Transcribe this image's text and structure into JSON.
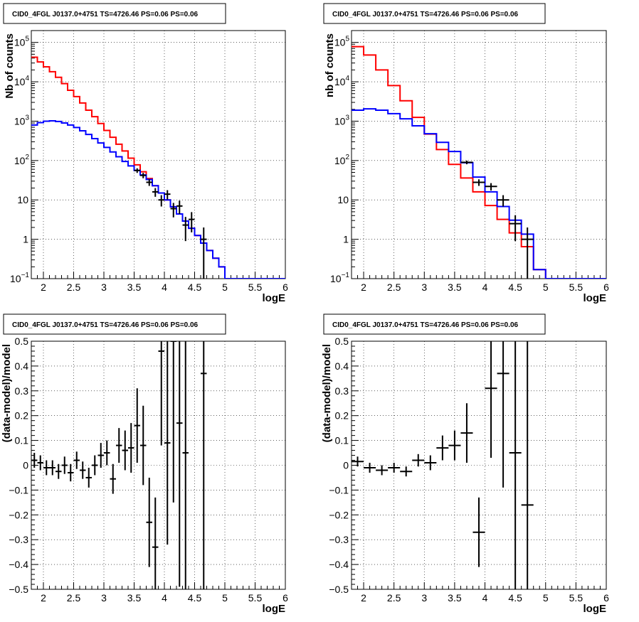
{
  "colors": {
    "data": "#000000",
    "model_total": "#ff0000",
    "model_source": "#0000ff",
    "grid": "#000000"
  },
  "chart_data": [
    {
      "type": "line",
      "title": "CID0_4FGL J0137.0+4751 TS=4726.46 PS=0.06 PS=0.06",
      "xlabel": "logE",
      "ylabel": "Nb of counts",
      "xlim": [
        1.8,
        6.0
      ],
      "ylim": [
        0.1,
        200000
      ],
      "yscale": "log",
      "grid": true,
      "xticks": [
        "2",
        "2.5",
        "3",
        "3.5",
        "4",
        "4.5",
        "5",
        "5.5",
        "6"
      ],
      "yticks": [
        {
          "v": 0.1,
          "base": "10",
          "exp": "−1"
        },
        {
          "v": 1,
          "base": "1",
          "exp": ""
        },
        {
          "v": 10,
          "base": "10",
          "exp": ""
        },
        {
          "v": 100,
          "base": "10",
          "exp": "2"
        },
        {
          "v": 1000,
          "base": "10",
          "exp": "3"
        },
        {
          "v": 10000,
          "base": "10",
          "exp": "4"
        },
        {
          "v": 100000,
          "base": "10",
          "exp": "5"
        }
      ],
      "series": [
        {
          "color": "#ff0000",
          "style": "step",
          "bin_width": 0.1,
          "x": [
            1.8,
            1.9,
            2.0,
            2.1,
            2.2,
            2.3,
            2.4,
            2.5,
            2.6,
            2.7,
            2.8,
            2.9,
            3.0,
            3.1,
            3.2,
            3.3,
            3.4,
            3.5,
            3.6,
            3.7,
            3.8,
            3.9,
            4.0,
            4.1,
            4.2,
            4.3,
            4.4,
            4.5,
            4.6,
            4.7,
            4.8,
            4.9,
            5.0,
            5.1,
            5.2,
            5.3,
            5.4,
            5.5,
            5.6,
            5.7,
            5.8,
            5.9
          ],
          "values": [
            42000,
            32000,
            24000,
            18000,
            13000,
            9000,
            6100,
            4200,
            2900,
            1900,
            1300,
            870,
            580,
            390,
            260,
            175,
            115,
            78,
            52,
            35,
            23,
            15,
            10,
            6.7,
            4.4,
            2.9,
            1.9,
            1.25,
            0.8,
            0.52,
            0.33,
            0.2,
            0.1,
            0.1,
            0.1,
            0.1,
            0.1,
            0.1,
            0.1,
            0.1,
            0.1,
            0.1
          ]
        },
        {
          "color": "#0000ff",
          "style": "step",
          "bin_width": 0.1,
          "x": [
            1.8,
            1.9,
            2.0,
            2.1,
            2.2,
            2.3,
            2.4,
            2.5,
            2.6,
            2.7,
            2.8,
            2.9,
            3.0,
            3.1,
            3.2,
            3.3,
            3.4,
            3.5,
            3.6,
            3.7,
            3.8,
            3.9,
            4.0,
            4.1,
            4.2,
            4.3,
            4.4,
            4.5,
            4.6,
            4.7,
            4.8,
            4.9,
            5.0,
            5.1,
            5.2,
            5.3,
            5.4,
            5.5,
            5.6,
            5.7,
            5.8,
            5.9
          ],
          "values": [
            800,
            920,
            1000,
            1020,
            980,
            900,
            800,
            690,
            570,
            460,
            360,
            280,
            215,
            165,
            125,
            95,
            73,
            56,
            43,
            33,
            23,
            15,
            10,
            6.7,
            4.4,
            2.9,
            1.9,
            1.25,
            0.8,
            0.52,
            0.33,
            0.2,
            0.1,
            0.1,
            0.1,
            0.1,
            0.1,
            0.1,
            0.1,
            0.1,
            0.1,
            0.1
          ]
        },
        {
          "color": "#000000",
          "style": "errorbar",
          "xerr": 0.05,
          "x": [
            3.55,
            3.65,
            3.75,
            3.85,
            3.95,
            4.05,
            4.15,
            4.25,
            4.35,
            4.45,
            4.65
          ],
          "values": [
            56,
            42,
            28,
            16,
            10,
            14,
            6,
            7,
            2.3,
            3.2,
            1.0
          ],
          "yerr_lo": [
            7.5,
            6.5,
            5.3,
            4,
            3.2,
            3.7,
            2.4,
            2.6,
            1.4,
            1.7,
            0.9
          ],
          "yerr_hi": [
            7.5,
            6.5,
            5.3,
            4,
            3.2,
            3.7,
            2.4,
            2.6,
            1.4,
            1.7,
            1.0
          ]
        }
      ]
    },
    {
      "type": "line",
      "title": "CID0_4FGL J0137.0+4751 TS=4726.46 PS=0.06 PS=0.06",
      "xlabel": "logE",
      "ylabel": "nb of counts",
      "xlim": [
        1.8,
        6.0
      ],
      "ylim": [
        0.1,
        200000
      ],
      "yscale": "log",
      "grid": true,
      "xticks": [
        "2",
        "2.5",
        "3",
        "3.5",
        "4",
        "4.5",
        "5",
        "5.5",
        "6"
      ],
      "yticks": [
        {
          "v": 0.1,
          "base": "10",
          "exp": "−1"
        },
        {
          "v": 1,
          "base": "1",
          "exp": ""
        },
        {
          "v": 10,
          "base": "10",
          "exp": ""
        },
        {
          "v": 100,
          "base": "10",
          "exp": "2"
        },
        {
          "v": 1000,
          "base": "10",
          "exp": "3"
        },
        {
          "v": 10000,
          "base": "10",
          "exp": "4"
        },
        {
          "v": 100000,
          "base": "10",
          "exp": "5"
        }
      ],
      "series": [
        {
          "color": "#ff0000",
          "style": "step",
          "bin_width": 0.2,
          "x": [
            1.8,
            2.0,
            2.2,
            2.4,
            2.6,
            2.8,
            3.0,
            3.2,
            3.4,
            3.6,
            3.8,
            4.0,
            4.2,
            4.4,
            4.6,
            4.8,
            5.0,
            5.2,
            5.4,
            5.6,
            5.8
          ],
          "values": [
            78000,
            48000,
            20000,
            8000,
            3300,
            1250,
            470,
            190,
            80,
            36,
            16,
            7.2,
            3.2,
            1.45,
            0.65,
            0.17,
            0.1,
            0.1,
            0.1,
            0.1,
            0.1
          ]
        },
        {
          "color": "#0000ff",
          "style": "step",
          "bin_width": 0.2,
          "x": [
            1.8,
            2.0,
            2.2,
            2.4,
            2.6,
            2.8,
            3.0,
            3.2,
            3.4,
            3.6,
            3.8,
            4.0,
            4.2,
            4.4,
            4.6,
            4.8,
            5.0,
            5.2,
            5.4,
            5.6,
            5.8
          ],
          "values": [
            1900,
            2050,
            1900,
            1550,
            1150,
            760,
            480,
            290,
            170,
            88,
            38,
            16,
            6.8,
            3.05,
            1.35,
            0.17,
            0.1,
            0.1,
            0.1,
            0.1,
            0.1
          ]
        },
        {
          "color": "#000000",
          "style": "errorbar",
          "xerr": 0.1,
          "x": [
            3.7,
            3.9,
            4.1,
            4.3,
            4.5,
            4.7
          ],
          "values": [
            90,
            28,
            22,
            10,
            2.5,
            1.0
          ],
          "yerr_lo": [
            9.5,
            5.3,
            4.7,
            3.2,
            1.6,
            0.9
          ],
          "yerr_hi": [
            9.5,
            5.3,
            4.7,
            3.2,
            1.6,
            1.0
          ]
        }
      ]
    },
    {
      "type": "scatter",
      "title": "CID0_4FGL J0137.0+4751 TS=4726.46 PS=0.06 PS=0.06",
      "xlabel": "logE",
      "ylabel": "(data-model)/model",
      "xlim": [
        1.8,
        6.0
      ],
      "ylim": [
        -0.5,
        0.5
      ],
      "grid": true,
      "xticks": [
        "2",
        "2.5",
        "3",
        "3.5",
        "4",
        "4.5",
        "5",
        "5.5",
        "6"
      ],
      "yticks": [
        "−0.5",
        "−0.4",
        "−0.3",
        "−0.2",
        "−0.1",
        "0",
        "0.1",
        "0.2",
        "0.3",
        "0.4",
        "0.5"
      ],
      "series": [
        {
          "color": "#000000",
          "style": "errorbar",
          "xerr": 0.05,
          "x": [
            1.85,
            1.95,
            2.05,
            2.15,
            2.25,
            2.35,
            2.45,
            2.55,
            2.65,
            2.75,
            2.85,
            2.95,
            3.05,
            3.15,
            3.25,
            3.35,
            3.45,
            3.55,
            3.65,
            3.75,
            3.85,
            3.95,
            4.05,
            4.15,
            4.25,
            4.35,
            4.65
          ],
          "values": [
            0.02,
            0.01,
            -0.01,
            -0.01,
            -0.025,
            0.0,
            -0.03,
            0.02,
            -0.02,
            -0.05,
            0.0,
            0.04,
            0.05,
            -0.055,
            0.08,
            0.06,
            0.07,
            0.16,
            0.08,
            -0.23,
            -0.33,
            0.46,
            0.09,
            0.5,
            0.17,
            0.05,
            0.37
          ],
          "yerr": [
            0.03,
            0.03,
            0.03,
            0.03,
            0.03,
            0.035,
            0.035,
            0.035,
            0.035,
            0.04,
            0.04,
            0.05,
            0.05,
            0.06,
            0.07,
            0.08,
            0.1,
            0.15,
            0.16,
            0.18,
            0.2,
            0.38,
            0.41,
            0.65,
            0.66,
            0.9,
            1.0
          ]
        }
      ]
    },
    {
      "type": "scatter",
      "title": "CID0_4FGL J0137.0+4751 TS=4726.46 PS=0.06 PS=0.06",
      "xlabel": "logE",
      "ylabel": "(data-model)/model",
      "xlim": [
        1.8,
        6.0
      ],
      "ylim": [
        -0.5,
        0.5
      ],
      "grid": true,
      "xticks": [
        "2",
        "2.5",
        "3",
        "3.5",
        "4",
        "4.5",
        "5",
        "5.5",
        "6"
      ],
      "yticks": [
        "−0.5",
        "−0.4",
        "−0.3",
        "−0.2",
        "−0.1",
        "0",
        "0.1",
        "0.2",
        "0.3",
        "0.4",
        "0.5"
      ],
      "series": [
        {
          "color": "#000000",
          "style": "errorbar",
          "xerr": 0.1,
          "x": [
            1.9,
            2.1,
            2.3,
            2.5,
            2.7,
            2.9,
            3.1,
            3.3,
            3.5,
            3.7,
            3.9,
            4.1,
            4.3,
            4.5,
            4.7
          ],
          "values": [
            0.015,
            -0.01,
            -0.02,
            -0.01,
            -0.025,
            0.02,
            0.01,
            0.07,
            0.08,
            0.13,
            -0.27,
            0.31,
            0.37,
            0.05,
            -0.16
          ],
          "yerr": [
            0.02,
            0.02,
            0.02,
            0.02,
            0.02,
            0.025,
            0.03,
            0.05,
            0.06,
            0.12,
            0.14,
            0.28,
            0.46,
            0.6,
            1.0
          ]
        }
      ]
    }
  ]
}
